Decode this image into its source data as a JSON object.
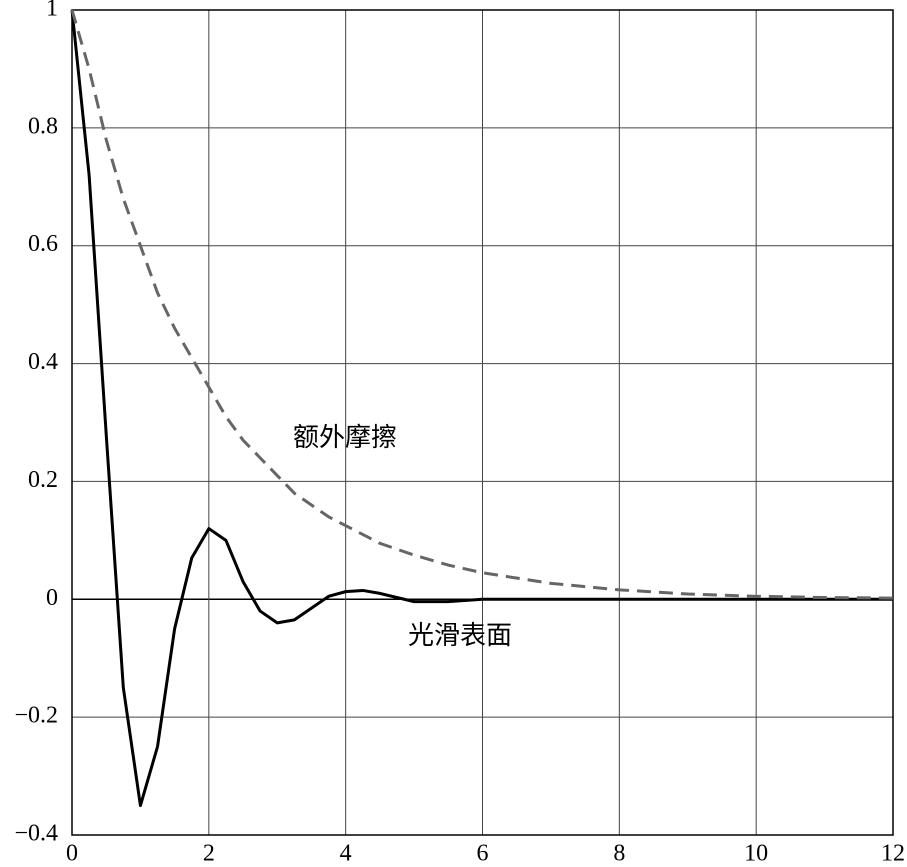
{
  "chart_data": {
    "type": "line",
    "x": [
      0,
      0.25,
      0.5,
      0.75,
      1,
      1.25,
      1.5,
      1.75,
      2,
      2.25,
      2.5,
      2.75,
      3,
      3.25,
      3.5,
      3.75,
      4,
      4.25,
      4.5,
      5,
      5.5,
      6,
      7,
      8,
      9,
      10,
      11,
      12
    ],
    "series": [
      {
        "name": "光滑表面",
        "color": "#000000",
        "dashed": false,
        "values": [
          1,
          0.72,
          0.28,
          -0.15,
          -0.35,
          -0.25,
          -0.05,
          0.07,
          0.12,
          0.1,
          0.03,
          -0.02,
          -0.04,
          -0.035,
          -0.015,
          0.005,
          0.013,
          0.015,
          0.01,
          -0.004,
          -0.004,
          0,
          0,
          0,
          0,
          0,
          0,
          0
        ]
      },
      {
        "name": "额外摩擦",
        "color": "#666666",
        "dashed": true,
        "values": [
          1,
          0.9,
          0.78,
          0.68,
          0.6,
          0.52,
          0.46,
          0.41,
          0.36,
          0.31,
          0.27,
          0.24,
          0.21,
          0.18,
          0.16,
          0.14,
          0.125,
          0.11,
          0.095,
          0.075,
          0.058,
          0.045,
          0.027,
          0.016,
          0.009,
          0.005,
          0.003,
          0.002
        ]
      }
    ],
    "xlim": [
      0,
      12
    ],
    "ylim": [
      -0.4,
      1
    ],
    "xticks": [
      0,
      2,
      4,
      6,
      8,
      10,
      12
    ],
    "yticks": [
      {
        "value": -0.4,
        "label": "−0.4"
      },
      {
        "value": -0.2,
        "label": "−0.2"
      },
      0,
      0.2,
      0.4,
      0.6,
      0.8,
      1
    ],
    "grid": true
  }
}
